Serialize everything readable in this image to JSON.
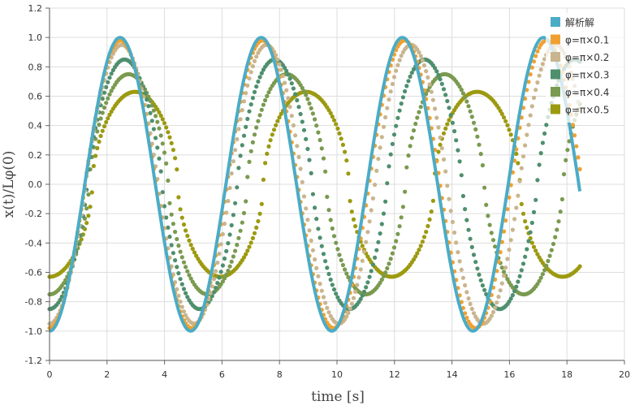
{
  "chart_data": {
    "type": "scatter",
    "xlabel": "time [s]",
    "ylabel": "x(t)/Lφ(0)",
    "xlim": [
      0,
      20
    ],
    "ylim": [
      -1.2,
      1.2
    ],
    "xticks": [
      0,
      2,
      4,
      6,
      8,
      10,
      12,
      14,
      16,
      18,
      20
    ],
    "yticks": [
      -1.2,
      -1.0,
      -0.8,
      -0.6,
      -0.4,
      -0.2,
      0.0,
      0.2,
      0.4,
      0.6,
      0.8,
      1.0,
      1.2
    ],
    "grid": true,
    "legend_position": "top-right",
    "t_end": 18.45,
    "series": [
      {
        "name": "解析解",
        "style": "line",
        "color": "#4bacc6",
        "amplitude": 1.0,
        "period": 4.91
      },
      {
        "name": "φ=π×0.1",
        "style": "dots",
        "color": "#f0a030",
        "amplitude": 0.98,
        "period": 4.94
      },
      {
        "name": "φ=π×0.2",
        "style": "dots",
        "color": "#c9b58e",
        "amplitude": 0.95,
        "period": 5.03
      },
      {
        "name": "φ=π×0.3",
        "style": "dots",
        "color": "#4e8f6e",
        "amplitude": 0.85,
        "period": 5.22
      },
      {
        "name": "φ=π×0.4",
        "style": "dots",
        "color": "#7a9a50",
        "amplitude": 0.75,
        "period": 5.5
      },
      {
        "name": "φ=π×0.5",
        "style": "dots",
        "color": "#9c9a10",
        "amplitude": 0.63,
        "period": 5.95
      }
    ]
  }
}
